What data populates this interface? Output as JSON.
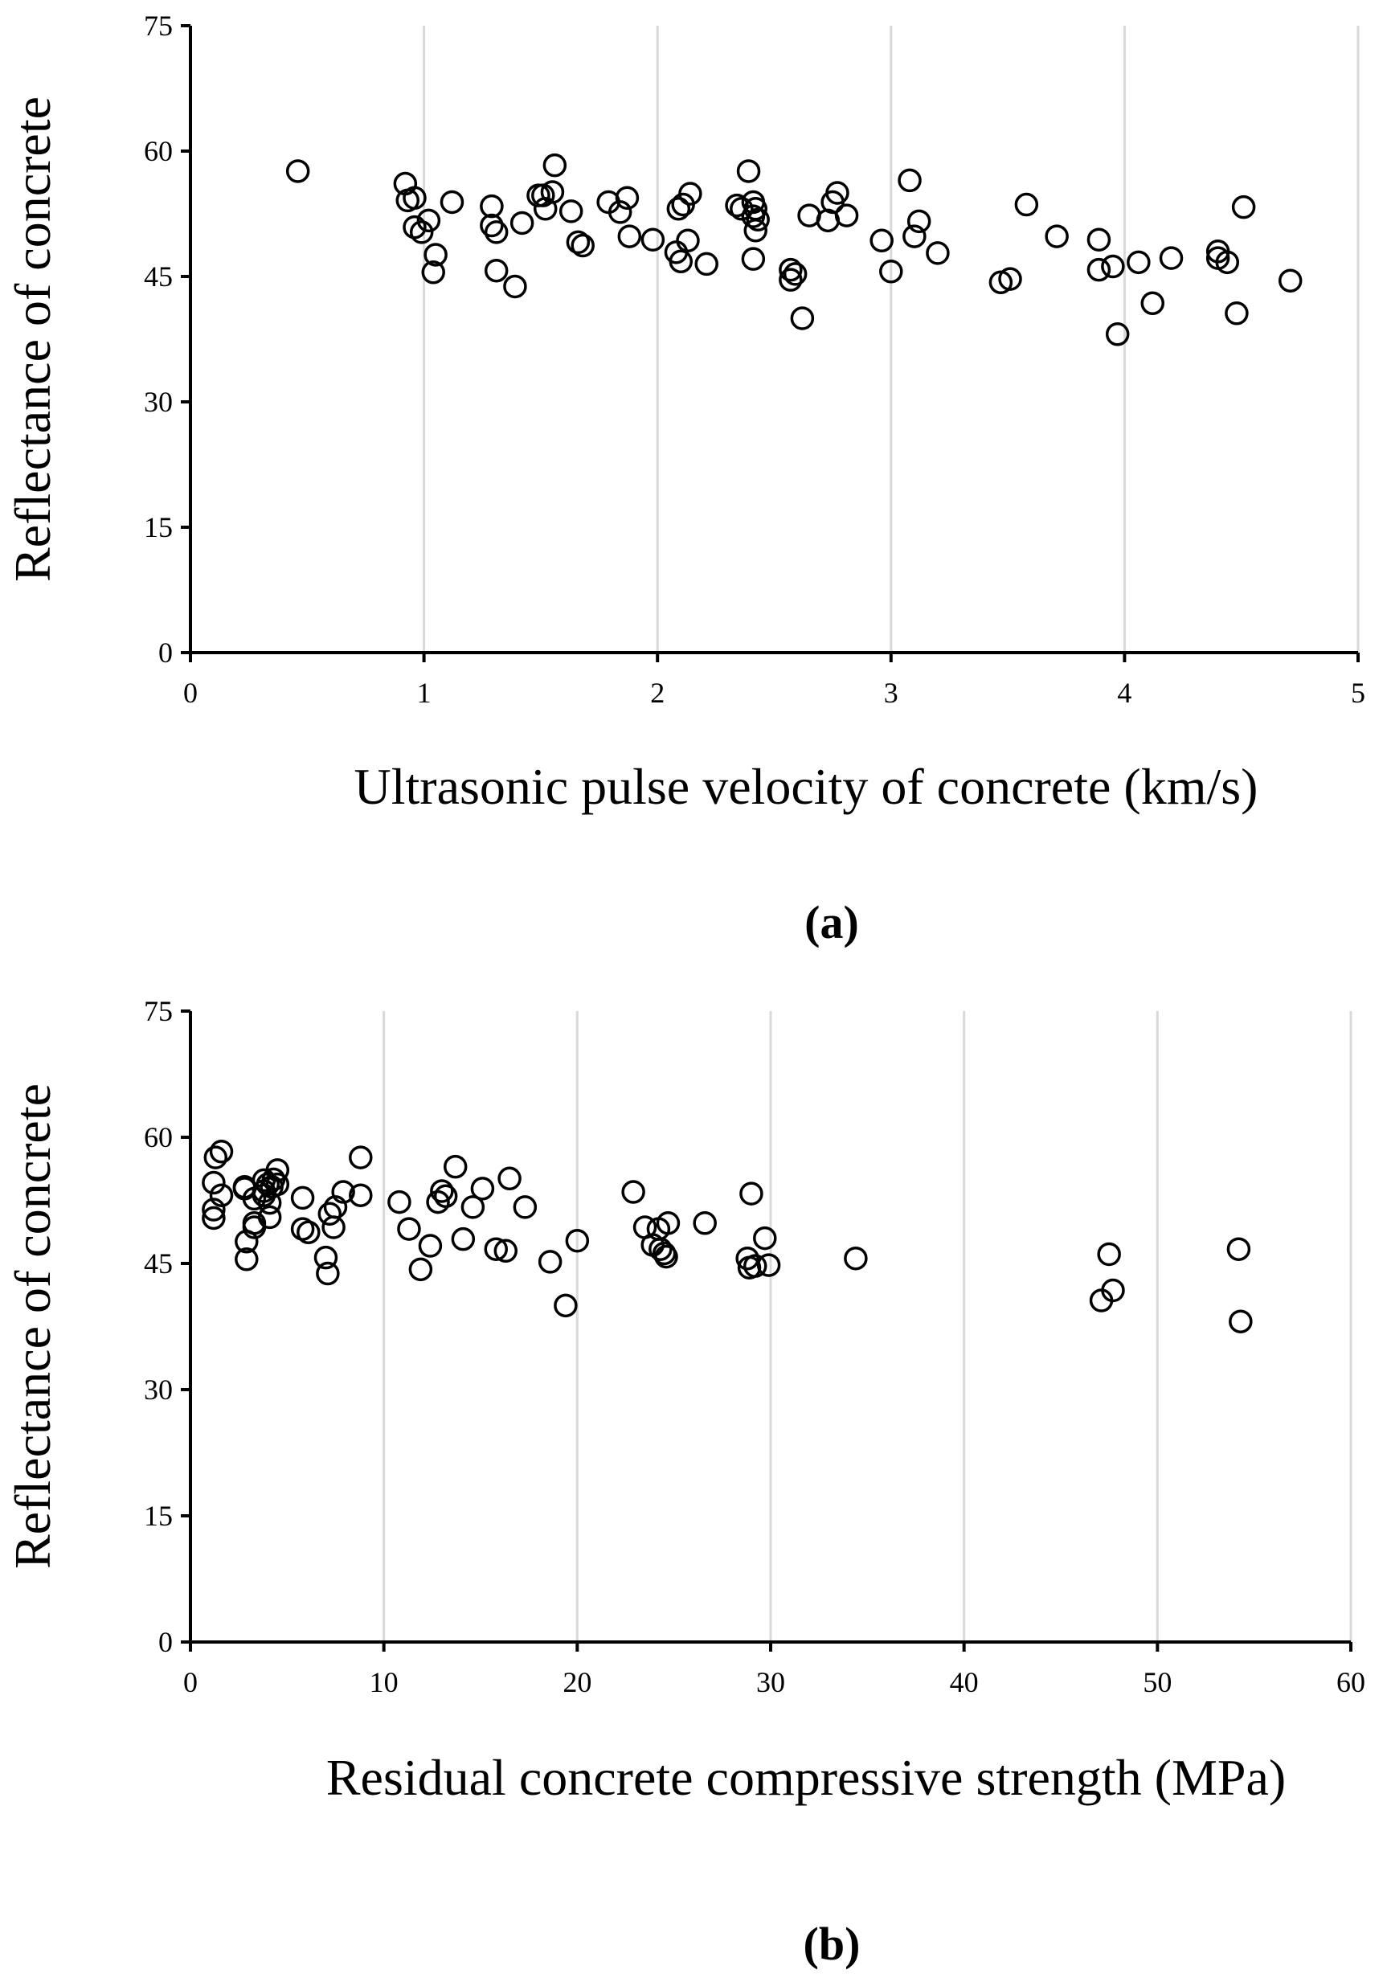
{
  "chart_data": [
    {
      "type": "scatter",
      "panel_label": "(a)",
      "xlabel": "Ultrasonic pulse velocity of concrete (km/s)",
      "ylabel": "Reflectance of concrete",
      "xlim": [
        0,
        5
      ],
      "ylim": [
        0,
        75
      ],
      "xticks": [
        0,
        1,
        2,
        3,
        4,
        5
      ],
      "yticks": [
        0,
        15,
        30,
        45,
        60,
        75
      ],
      "grid": "vertical",
      "points": [
        [
          0.46,
          57.6
        ],
        [
          0.92,
          56.1
        ],
        [
          0.93,
          54.1
        ],
        [
          0.96,
          54.4
        ],
        [
          0.96,
          50.9
        ],
        [
          0.99,
          50.3
        ],
        [
          1.02,
          51.7
        ],
        [
          1.04,
          45.5
        ],
        [
          1.05,
          47.6
        ],
        [
          1.12,
          53.9
        ],
        [
          1.29,
          53.4
        ],
        [
          1.29,
          51.1
        ],
        [
          1.31,
          50.3
        ],
        [
          1.31,
          45.7
        ],
        [
          1.39,
          43.8
        ],
        [
          1.42,
          51.4
        ],
        [
          1.49,
          54.7
        ],
        [
          1.51,
          54.7
        ],
        [
          1.52,
          53.1
        ],
        [
          1.55,
          55.1
        ],
        [
          1.56,
          58.3
        ],
        [
          1.63,
          52.8
        ],
        [
          1.66,
          49.1
        ],
        [
          1.68,
          48.7
        ],
        [
          1.79,
          53.9
        ],
        [
          1.84,
          52.7
        ],
        [
          1.87,
          54.4
        ],
        [
          1.88,
          49.8
        ],
        [
          1.98,
          49.4
        ],
        [
          2.08,
          47.9
        ],
        [
          2.09,
          53.1
        ],
        [
          2.1,
          46.8
        ],
        [
          2.11,
          53.6
        ],
        [
          2.13,
          49.3
        ],
        [
          2.14,
          54.9
        ],
        [
          2.21,
          46.5
        ],
        [
          2.34,
          53.5
        ],
        [
          2.36,
          53.1
        ],
        [
          2.39,
          57.6
        ],
        [
          2.41,
          53.9
        ],
        [
          2.41,
          52.2
        ],
        [
          2.41,
          47.1
        ],
        [
          2.42,
          53.1
        ],
        [
          2.42,
          50.5
        ],
        [
          2.43,
          51.8
        ],
        [
          2.57,
          45.8
        ],
        [
          2.57,
          44.6
        ],
        [
          2.59,
          45.3
        ],
        [
          2.62,
          40.0
        ],
        [
          2.65,
          52.3
        ],
        [
          2.73,
          51.7
        ],
        [
          2.75,
          53.9
        ],
        [
          2.77,
          55.0
        ],
        [
          2.81,
          52.3
        ],
        [
          2.96,
          49.3
        ],
        [
          3.0,
          45.6
        ],
        [
          3.08,
          56.5
        ],
        [
          3.1,
          49.8
        ],
        [
          3.12,
          51.6
        ],
        [
          3.2,
          47.8
        ],
        [
          3.47,
          44.3
        ],
        [
          3.51,
          44.7
        ],
        [
          3.58,
          53.6
        ],
        [
          3.71,
          49.8
        ],
        [
          3.89,
          49.4
        ],
        [
          3.89,
          45.8
        ],
        [
          3.95,
          46.2
        ],
        [
          3.97,
          38.1
        ],
        [
          4.06,
          46.7
        ],
        [
          4.12,
          41.8
        ],
        [
          4.2,
          47.2
        ],
        [
          4.4,
          48.0
        ],
        [
          4.4,
          47.2
        ],
        [
          4.44,
          46.7
        ],
        [
          4.48,
          40.6
        ],
        [
          4.51,
          53.3
        ],
        [
          4.71,
          44.5
        ]
      ]
    },
    {
      "type": "scatter",
      "panel_label": "(b)",
      "xlabel": "Residual concrete compressive strength (MPa)",
      "ylabel": "Reflectance of concrete",
      "xlim": [
        0,
        60
      ],
      "ylim": [
        0,
        75
      ],
      "xticks": [
        0,
        10,
        20,
        30,
        40,
        50,
        60
      ],
      "yticks": [
        0,
        15,
        30,
        45,
        60,
        75
      ],
      "grid": "vertical",
      "points": [
        [
          1.2,
          54.6
        ],
        [
          1.2,
          51.4
        ],
        [
          1.2,
          50.4
        ],
        [
          1.3,
          57.6
        ],
        [
          1.6,
          58.3
        ],
        [
          1.6,
          53.1
        ],
        [
          2.8,
          53.9
        ],
        [
          2.8,
          54.1
        ],
        [
          2.9,
          47.6
        ],
        [
          2.9,
          45.5
        ],
        [
          3.3,
          52.7
        ],
        [
          3.3,
          49.8
        ],
        [
          3.3,
          49.3
        ],
        [
          3.8,
          54.9
        ],
        [
          3.8,
          53.6
        ],
        [
          3.8,
          53.1
        ],
        [
          4.0,
          54.4
        ],
        [
          4.1,
          52.2
        ],
        [
          4.1,
          50.5
        ],
        [
          4.2,
          54.1
        ],
        [
          4.3,
          55.0
        ],
        [
          4.5,
          56.1
        ],
        [
          4.5,
          54.4
        ],
        [
          5.8,
          49.1
        ],
        [
          5.8,
          52.8
        ],
        [
          6.1,
          48.7
        ],
        [
          7.0,
          45.7
        ],
        [
          7.1,
          43.8
        ],
        [
          7.2,
          50.9
        ],
        [
          7.4,
          49.3
        ],
        [
          7.5,
          51.7
        ],
        [
          7.9,
          53.5
        ],
        [
          8.8,
          57.6
        ],
        [
          8.8,
          53.1
        ],
        [
          10.8,
          52.3
        ],
        [
          11.3,
          49.1
        ],
        [
          11.9,
          44.3
        ],
        [
          12.4,
          47.1
        ],
        [
          12.8,
          52.3
        ],
        [
          13.0,
          53.6
        ],
        [
          13.2,
          53.0
        ],
        [
          13.7,
          56.5
        ],
        [
          14.1,
          47.9
        ],
        [
          14.6,
          51.7
        ],
        [
          15.1,
          53.9
        ],
        [
          15.8,
          46.7
        ],
        [
          16.3,
          46.5
        ],
        [
          16.5,
          55.1
        ],
        [
          17.3,
          51.7
        ],
        [
          18.6,
          45.2
        ],
        [
          19.4,
          40.0
        ],
        [
          20.0,
          47.7
        ],
        [
          22.9,
          53.5
        ],
        [
          23.5,
          49.3
        ],
        [
          23.9,
          47.2
        ],
        [
          24.2,
          49.1
        ],
        [
          24.3,
          46.7
        ],
        [
          24.5,
          46.2
        ],
        [
          24.6,
          45.8
        ],
        [
          24.7,
          49.8
        ],
        [
          26.6,
          49.8
        ],
        [
          28.8,
          45.6
        ],
        [
          28.9,
          44.5
        ],
        [
          29.0,
          53.3
        ],
        [
          29.2,
          44.7
        ],
        [
          29.7,
          48.0
        ],
        [
          29.9,
          44.8
        ],
        [
          34.4,
          45.6
        ],
        [
          47.1,
          40.6
        ],
        [
          47.5,
          46.1
        ],
        [
          47.7,
          41.8
        ],
        [
          54.2,
          46.7
        ],
        [
          54.3,
          38.1
        ]
      ]
    }
  ]
}
